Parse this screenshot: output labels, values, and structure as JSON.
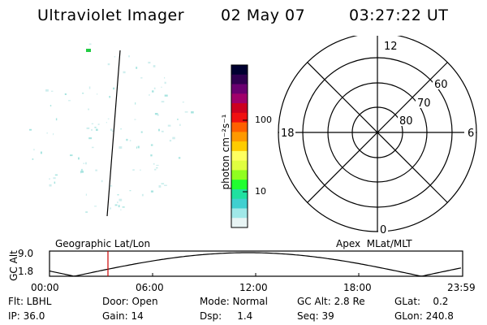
{
  "header": {
    "title": "Ultraviolet Imager",
    "date": "02 May 07",
    "time": "03:27:22 UT"
  },
  "colorbar": {
    "label": "photon cm⁻²s⁻¹",
    "ticks": [
      "100",
      "10"
    ],
    "scale": "log",
    "colors": [
      "#000030",
      "#300050",
      "#6a0070",
      "#a0006a",
      "#cc0020",
      "#f01010",
      "#ff6000",
      "#ff9900",
      "#ffcc00",
      "#ffff60",
      "#e0ff40",
      "#90ff20",
      "#20ff30",
      "#20e0a0",
      "#40d0d0",
      "#a0e8e8",
      "#e8f4f4"
    ]
  },
  "polar_grid": {
    "labels": {
      "top": "12",
      "left": "18",
      "right": "6",
      "bottom": "0"
    },
    "circle_labels": [
      "60",
      "70",
      "80"
    ]
  },
  "timeline": {
    "ylabel": "GC Alt",
    "yticks": [
      "9.0",
      "1.8"
    ],
    "left_caption": "Geographic Lat/Lon",
    "right_caption": "Apex  MLat/MLT",
    "xticks": [
      "00:00",
      "06:00",
      "12:00",
      "18:00",
      "23:59"
    ],
    "colors": {
      "curve": "#000000",
      "marker": "#cc0000"
    }
  },
  "params": {
    "filter": "Flt: LBHL",
    "door": "Door: Open",
    "mode": "Mode: Normal",
    "gc_alt": "GC Alt: 2.8 Re",
    "glat": "GLat:    0.2",
    "ip": "IP: 36.0",
    "gain": "Gain: 14",
    "dsp": "Dsp:     1.4",
    "seq": "Seq: 39",
    "glon": "GLon: 240.8"
  }
}
